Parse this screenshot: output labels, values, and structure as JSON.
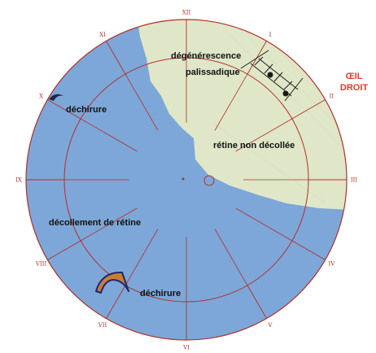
{
  "clock_hours": [
    "XII",
    "I",
    "II",
    "III",
    "IV",
    "V",
    "VI",
    "VII",
    "VIII",
    "IX",
    "X",
    "XI"
  ],
  "labels": {
    "degeneration_line1": "dégénérescence",
    "degeneration_line2": "palissadique",
    "tear_top": "déchirure",
    "attached_retina": "rétine non décollée",
    "detachment": "décollement de rétine",
    "tear_bottom": "déchirure"
  },
  "eye_side": {
    "line1": "ŒIL",
    "line2": "DROIT"
  },
  "colors": {
    "detached_blue": "#7da7d8",
    "attached_green": "#dfe7c8",
    "grid_red": "#b2302c",
    "eye_side_red": "#e23b2c",
    "tear_orange": "#d07a3a"
  }
}
